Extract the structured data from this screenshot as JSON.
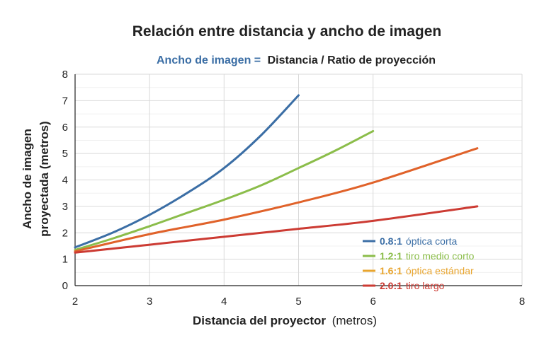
{
  "chart_data": {
    "type": "line",
    "title": "Relación entre distancia y ancho de imagen",
    "subtitle": {
      "highlight": "Ancho de imagen =",
      "rest": "Distancia / Ratio de proyección",
      "highlight_color": "#3b6ea5",
      "rest_color": "#222222"
    },
    "xlabel": {
      "bold": "Distancia del proyector",
      "unit": "(metros)"
    },
    "ylabel": {
      "line1": "Ancho de imagen",
      "line2": "proyectada (metros)"
    },
    "xlim": [
      2,
      8
    ],
    "ylim": [
      0,
      8
    ],
    "xticks": [
      2,
      3,
      4,
      5,
      6,
      8
    ],
    "yticks": [
      0,
      1,
      2,
      3,
      4,
      5,
      6,
      7,
      8
    ],
    "grid": true,
    "legend_position": "bottom-right",
    "series": [
      {
        "name": "0.8:1",
        "label": "óptica corta",
        "color": "#3b6ea5",
        "x": [
          2,
          2.5,
          3,
          3.5,
          4,
          4.5,
          5
        ],
        "y": [
          1.45,
          2.0,
          2.68,
          3.5,
          4.45,
          5.7,
          7.2
        ]
      },
      {
        "name": "1.2:1",
        "label": "tiro medio corto",
        "color": "#8bbd4a",
        "x": [
          2,
          2.5,
          3,
          3.5,
          4,
          4.5,
          5,
          5.5,
          6
        ],
        "y": [
          1.35,
          1.78,
          2.25,
          2.75,
          3.25,
          3.8,
          4.45,
          5.12,
          5.85
        ]
      },
      {
        "name": "1.6:1",
        "label": "óptica estándar",
        "color": "#e8a52f",
        "x": [
          2,
          3,
          4,
          5,
          6,
          7.4
        ],
        "y": [
          1.3,
          1.95,
          2.5,
          3.15,
          3.9,
          5.2
        ],
        "line_color": "#e0622a"
      },
      {
        "name": "2.0:1",
        "label": "tiro largo",
        "color": "#cc3b33",
        "x": [
          2,
          3,
          4,
          5,
          6,
          7.4
        ],
        "y": [
          1.25,
          1.55,
          1.85,
          2.15,
          2.45,
          3.0
        ]
      }
    ]
  }
}
